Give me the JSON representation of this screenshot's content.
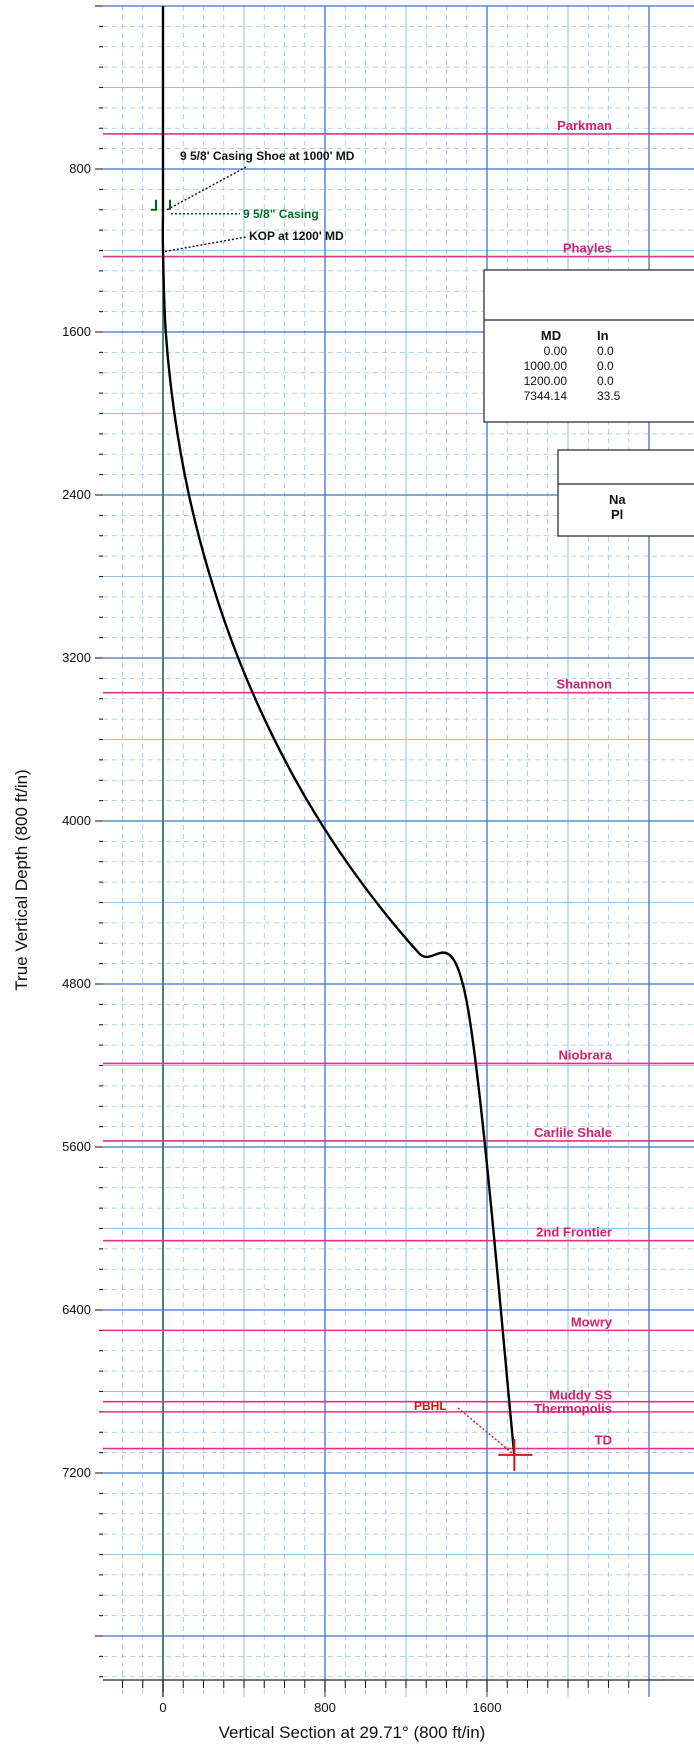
{
  "chart_data": {
    "type": "line",
    "xlabel": "Vertical Section at 29.71° (800 ft/in)",
    "ylabel": "True Vertical Depth (800 ft/in)",
    "x_ticks": [
      0,
      800,
      1600
    ],
    "y_ticks": [
      800,
      1600,
      2400,
      3200,
      4000,
      4800,
      5600,
      6400,
      7200
    ],
    "xlim": [
      -300,
      2250
    ],
    "ylim": [
      0,
      7450
    ],
    "y_inverted": true,
    "grid": true,
    "series": [
      {
        "x": [
          0,
          0,
          0,
          0,
          14,
          57,
          126,
          222,
          342,
          486,
          652,
          838,
          1043,
          1264,
          1500,
          1735
        ],
        "y": [
          0,
          800,
          1000,
          1200,
          1606,
          2004,
          2390,
          2764,
          3124,
          3467,
          3794,
          4100,
          4385,
          4649,
          4888,
          7111
        ],
        "color": "#000000"
      }
    ],
    "formations": [
      {
        "name": "Parkman",
        "tvd": 628
      },
      {
        "name": "Phayles",
        "tvd": 1230
      },
      {
        "name": "Shannon",
        "tvd": 3370
      },
      {
        "name": "Niobrara",
        "tvd": 5190
      },
      {
        "name": "Carlile Shale",
        "tvd": 5570
      },
      {
        "name": "2nd Frontier",
        "tvd": 6060
      },
      {
        "name": "Mowry",
        "tvd": 6500
      },
      {
        "name": "Muddy SS",
        "tvd": 6850
      },
      {
        "name": "Thermopolis",
        "tvd": 6900
      },
      {
        "name": "TD",
        "tvd": 7080
      }
    ],
    "annotations": [
      {
        "text": "9 5/8' Casing Shoe at 1000' MD",
        "x": 0,
        "y": 1000
      },
      {
        "text": "9 5/8\" Casing",
        "x": 0,
        "y": 1000
      },
      {
        "text": "KOP at 1200' MD",
        "x": 0,
        "y": 1200
      },
      {
        "text": "PBHL",
        "x": 1735,
        "y": 7111
      }
    ],
    "section_table": {
      "title": "",
      "headers": [
        "MD",
        "In"
      ],
      "rows": [
        [
          "0.00",
          "0.0"
        ],
        [
          "1000.00",
          "0.0"
        ],
        [
          "1200.00",
          "0.0"
        ],
        [
          "7344.14",
          "33.5"
        ]
      ]
    },
    "target_table": {
      "title": "",
      "header": "Na",
      "row": "Pl"
    }
  },
  "colors": {
    "grid_major": "#3a76c8",
    "grid_minor": "#96c4e6",
    "formation": "#e0338c",
    "formation_label": "#d4206f",
    "annotation": "#111111",
    "casing": "#006400",
    "casing_label": "#007020",
    "pbhl": "#e01010",
    "vs_zero_line": "#1d6a45"
  }
}
